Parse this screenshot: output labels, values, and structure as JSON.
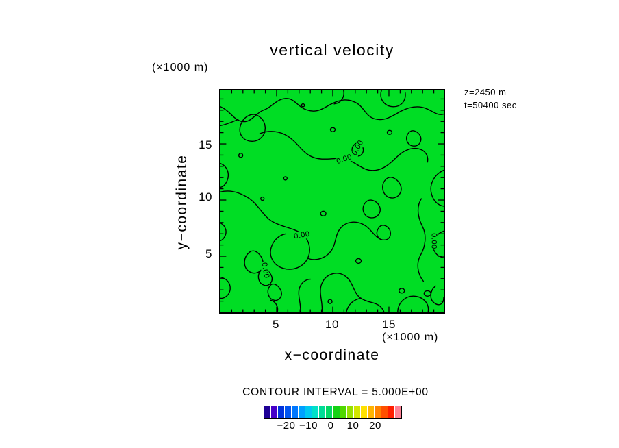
{
  "title": "vertical velocity",
  "annotations": {
    "z": "z=2450 m",
    "t": "t=50400 sec"
  },
  "axes": {
    "x": {
      "label": "x−coordinate",
      "unit": "(×1000 m)",
      "ticks": [
        "5",
        "10",
        "15"
      ]
    },
    "y": {
      "label": "y−coordinate",
      "unit": "(×1000 m)",
      "ticks": [
        "15",
        "10",
        "5"
      ]
    }
  },
  "contour": {
    "interval_text": "CONTOUR INTERVAL = 5.000E+00",
    "labels": [
      "0.00",
      "0.00",
      "0.00",
      "0.00",
      "0.00"
    ]
  },
  "colors": {
    "plot_background": "#00dd24",
    "contour_line": "#000000"
  },
  "colorbar": {
    "tick_labels": [
      "−20",
      "−10",
      "0",
      "10",
      "20"
    ],
    "colors": [
      "#1e0096",
      "#4600c8",
      "#0032dc",
      "#0055f0",
      "#0078ff",
      "#00a0ff",
      "#00c8f0",
      "#00e1c8",
      "#00dc96",
      "#00d864",
      "#14d214",
      "#50d800",
      "#96e100",
      "#d2e600",
      "#ffe100",
      "#ffb400",
      "#ff8200",
      "#ff5000",
      "#ff1e00",
      "#ff8296"
    ]
  },
  "chart_data": {
    "type": "heatmap",
    "subtype": "filled-contour",
    "title": "vertical velocity",
    "xlabel": "x−coordinate (×1000 m)",
    "ylabel": "y−coordinate (×1000 m)",
    "x_range": [
      0,
      20
    ],
    "y_range": [
      0,
      20
    ],
    "x_ticks": [
      5,
      10,
      15
    ],
    "y_ticks": [
      5,
      10,
      15
    ],
    "level_height_m": 2450,
    "time_sec": 50400,
    "contour_interval": 5.0,
    "labeled_contour_levels": [
      0.0
    ],
    "field_note": "vertical velocity field is near zero everywhere; only the 0.00 contour is drawn over a uniform green (zero-band) fill",
    "colorbar": {
      "tick_values": [
        -20,
        -10,
        0,
        10,
        20
      ],
      "n_colors": 20,
      "orientation": "horizontal",
      "position": "bottom"
    },
    "grid": false,
    "legend": false
  }
}
